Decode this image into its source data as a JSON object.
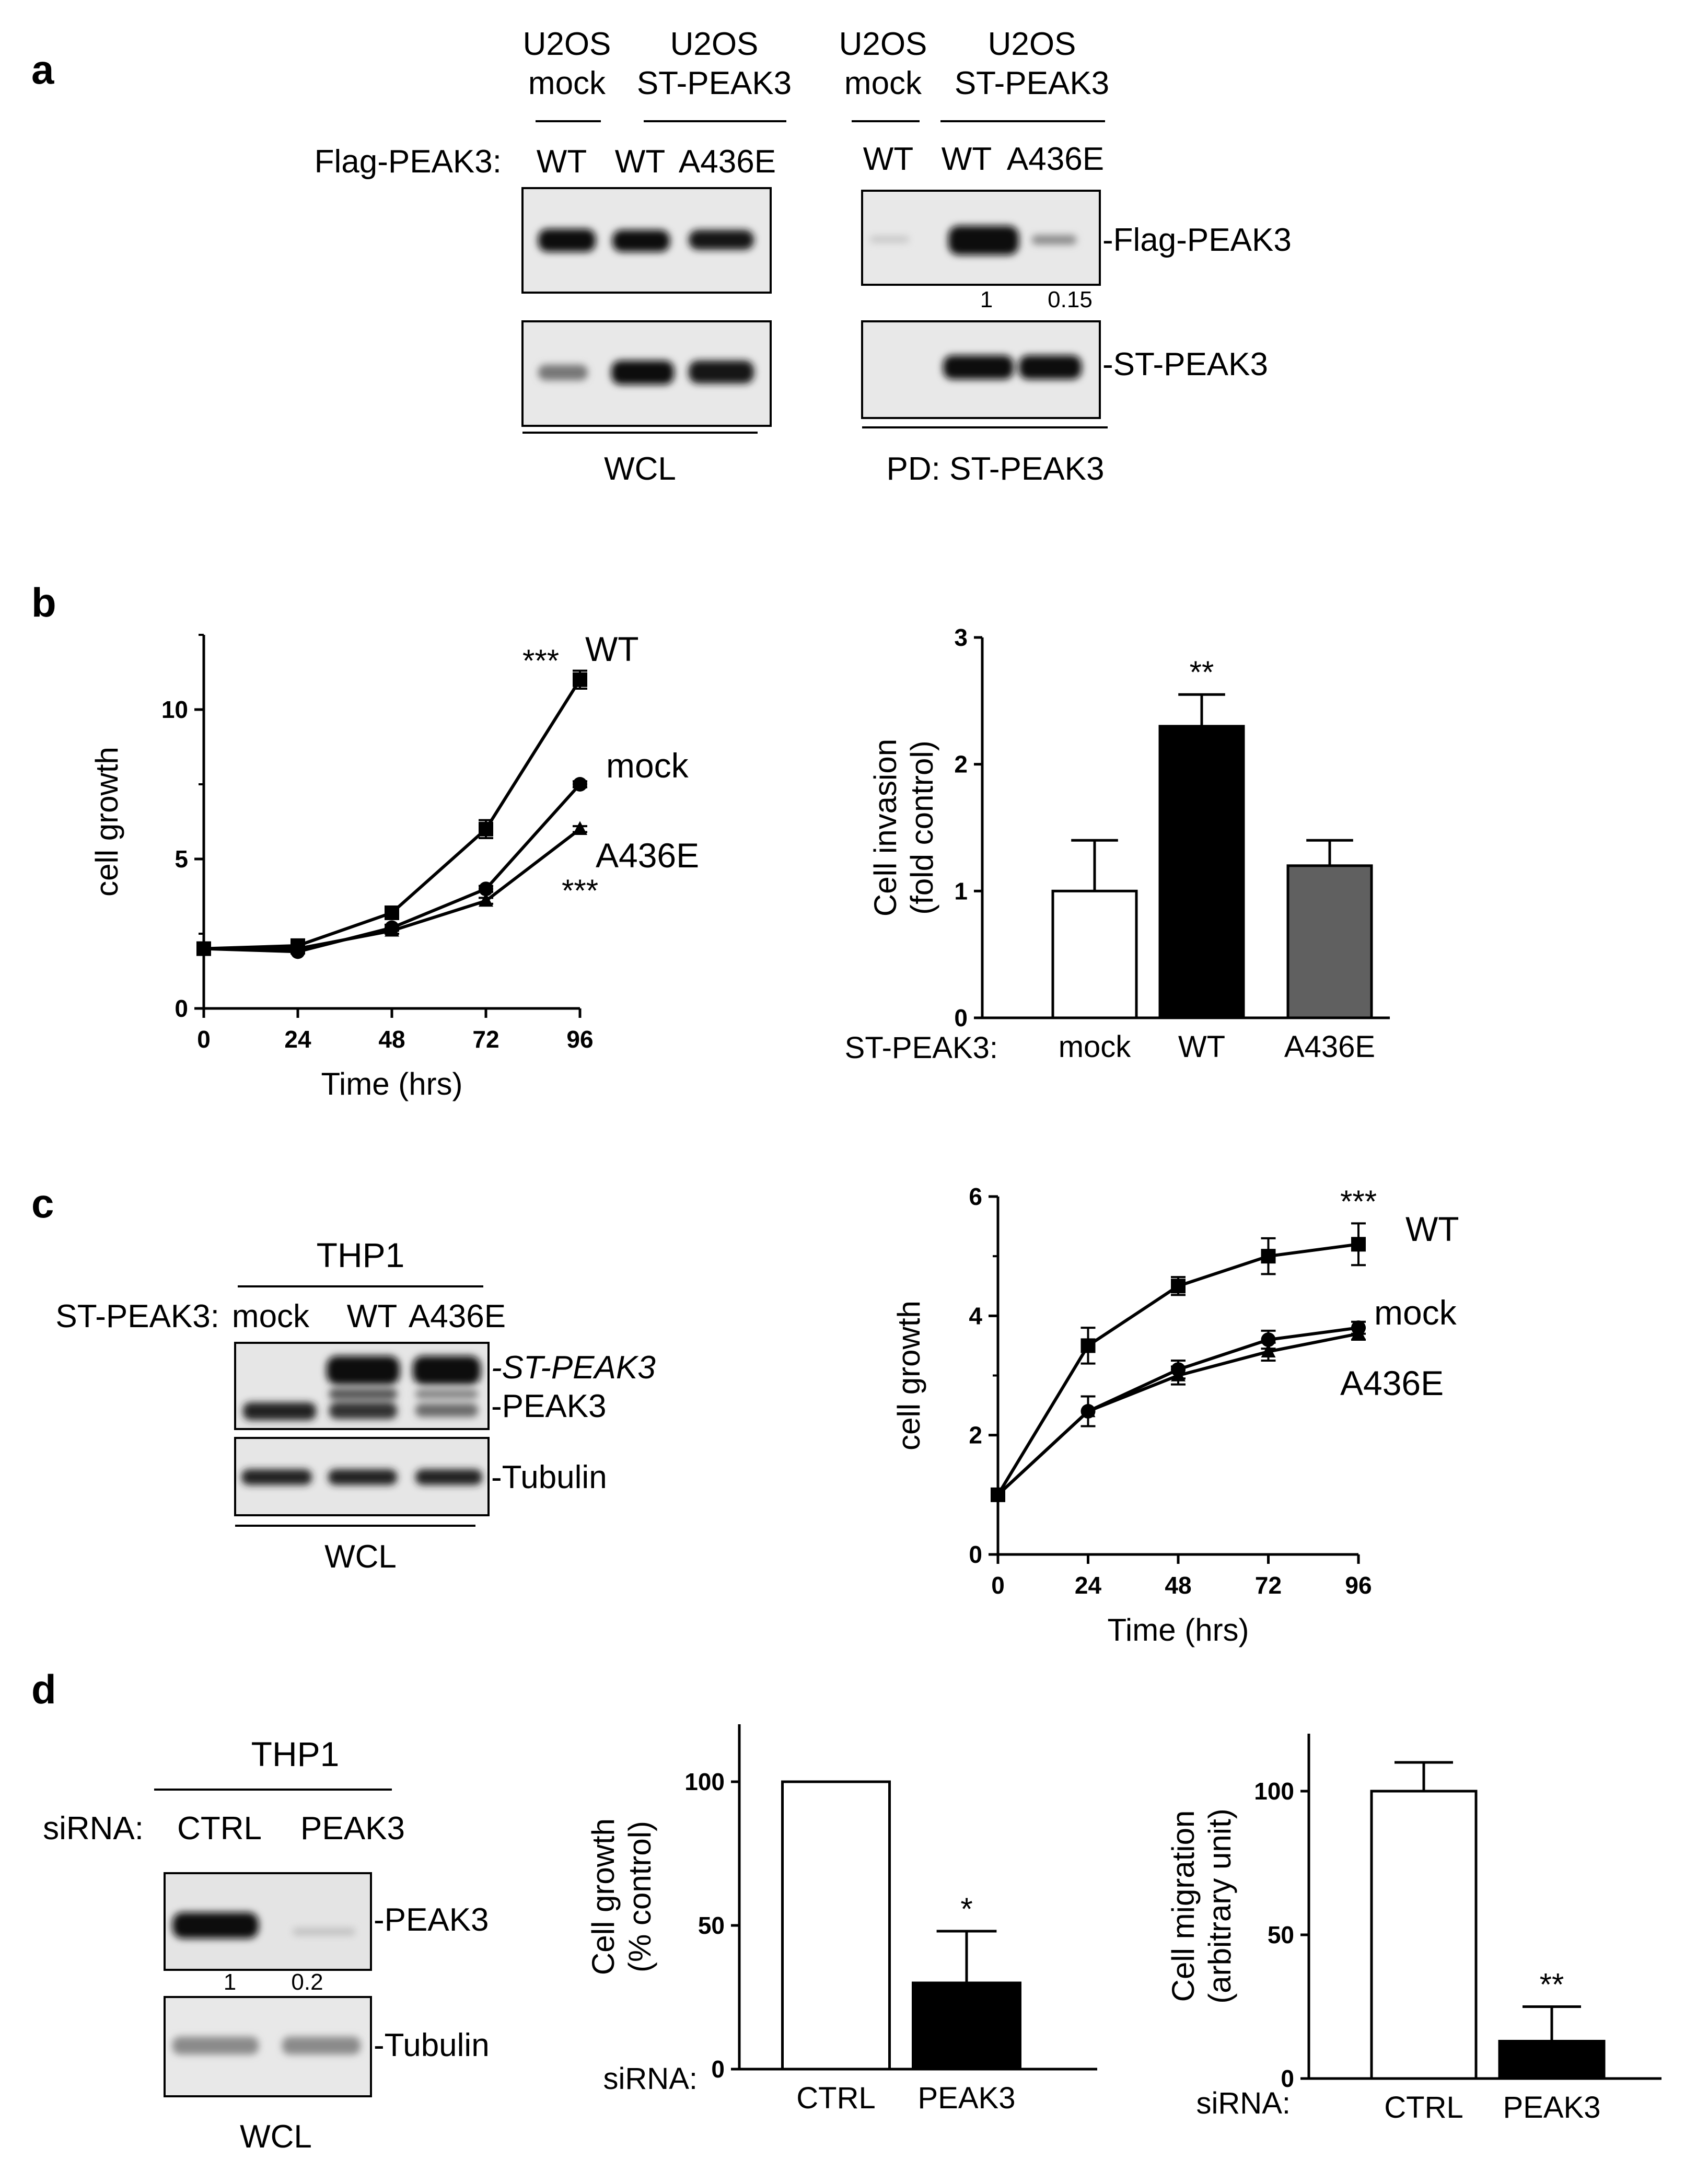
{
  "panels": {
    "a": "a",
    "b": "b",
    "c": "c",
    "d": "d"
  },
  "colors": {
    "ink": "#000000",
    "blot_bg": "#e6e6e6",
    "blot_band": "#1a1a1a",
    "bar_white": "#ffffff",
    "bar_black": "#000000",
    "bar_grey": "#606060"
  },
  "panel_a": {
    "left": {
      "groups": [
        "U2OS\nmock",
        "U2OS\nST-PEAK3"
      ],
      "row_label": "Flag-PEAK3:",
      "lanes": [
        "WT",
        "WT",
        "A436E"
      ],
      "footer": "WCL",
      "band_levels_flag": [
        1.0,
        1.0,
        0.95
      ],
      "band_levels_st": [
        0.45,
        1.0,
        1.0
      ]
    },
    "right": {
      "groups": [
        "U2OS\nmock",
        "U2OS\nST-PEAK3"
      ],
      "lanes": [
        "WT",
        "WT",
        "A436E"
      ],
      "band_labels": [
        "-Flag-PEAK3",
        "-ST-PEAK3"
      ],
      "quant": [
        "1",
        "0.15"
      ],
      "footer": "PD: ST-PEAK3",
      "band_levels_flag": [
        0.12,
        1.0,
        0.3
      ],
      "band_levels_st": [
        0.0,
        1.0,
        1.0
      ]
    }
  },
  "panel_c_blot": {
    "title": "THP1",
    "row_label": "ST-PEAK3:",
    "lanes": [
      "mock",
      "WT",
      "A436E"
    ],
    "band_labels": [
      "-ST-PEAK3",
      "-PEAK3",
      "-Tubulin"
    ],
    "footer": "WCL"
  },
  "panel_d_blot": {
    "title": "THP1",
    "row_label": "siRNA:",
    "lanes": [
      "CTRL",
      "PEAK3"
    ],
    "band_labels": [
      "-PEAK3",
      "-Tubulin"
    ],
    "quant": [
      "1",
      "0.2"
    ],
    "footer": "WCL"
  },
  "chart_data": [
    {
      "id": "b_growth",
      "type": "line",
      "xlabel": "Time (hrs)",
      "ylabel": "cell growth",
      "x": [
        0,
        24,
        48,
        72,
        96
      ],
      "xticks": [
        "0",
        "24",
        "48",
        "72",
        "96"
      ],
      "yticks": [
        "0",
        "5",
        "10"
      ],
      "xlim": [
        0,
        96
      ],
      "ylim": [
        0,
        12.5
      ],
      "series": [
        {
          "name": "WT",
          "marker": "square",
          "values": [
            2,
            2.1,
            3.2,
            6.0,
            11.0
          ],
          "err": [
            0.1,
            0.1,
            0.15,
            0.3,
            0.3
          ],
          "stars": "***"
        },
        {
          "name": "mock",
          "marker": "circle",
          "values": [
            2,
            1.9,
            2.7,
            4.0,
            7.5
          ],
          "err": [
            0.05,
            0.05,
            0.1,
            0.1,
            0.1
          ],
          "stars": ""
        },
        {
          "name": "A436E",
          "marker": "triangle",
          "values": [
            2,
            2.0,
            2.6,
            3.6,
            6.0
          ],
          "err": [
            0.05,
            0.05,
            0.1,
            0.1,
            0.1
          ],
          "stars": "***"
        }
      ]
    },
    {
      "id": "b_invasion",
      "type": "bar",
      "ylabel": "Cell invasion\n(fold control)",
      "category_label": "ST-PEAK3:",
      "categories": [
        "mock",
        "WT",
        "A436E"
      ],
      "values": [
        1.0,
        2.3,
        1.2
      ],
      "err": [
        0.4,
        0.25,
        0.2
      ],
      "stars": [
        "",
        "**",
        ""
      ],
      "fills": [
        "#ffffff",
        "#000000",
        "#606060"
      ],
      "ylim": [
        0,
        3
      ],
      "yticks": [
        "0",
        "1",
        "2",
        "3"
      ]
    },
    {
      "id": "c_growth",
      "type": "line",
      "xlabel": "Time (hrs)",
      "ylabel": "cell growth",
      "x": [
        0,
        24,
        48,
        72,
        96
      ],
      "xticks": [
        "0",
        "24",
        "48",
        "72",
        "96"
      ],
      "yticks": [
        "0",
        "2",
        "4",
        "6"
      ],
      "xlim": [
        0,
        96
      ],
      "ylim": [
        0,
        6
      ],
      "series": [
        {
          "name": "WT",
          "marker": "square",
          "values": [
            1.0,
            3.5,
            4.5,
            5.0,
            5.2
          ],
          "err": [
            0.05,
            0.3,
            0.15,
            0.3,
            0.35
          ],
          "stars": "***"
        },
        {
          "name": "mock",
          "marker": "circle",
          "values": [
            1.0,
            2.4,
            3.1,
            3.6,
            3.8
          ],
          "err": [
            0.05,
            0.25,
            0.15,
            0.15,
            0.1
          ],
          "stars": ""
        },
        {
          "name": "A436E",
          "marker": "triangle",
          "values": [
            1.0,
            2.4,
            3.0,
            3.4,
            3.7
          ],
          "err": [
            0.05,
            0.25,
            0.15,
            0.15,
            0.1
          ],
          "stars": ""
        }
      ]
    },
    {
      "id": "d_growth",
      "type": "bar",
      "ylabel": "Cell growth\n(% control)",
      "category_label": "siRNA:",
      "categories": [
        "CTRL",
        "PEAK3"
      ],
      "values": [
        100,
        30
      ],
      "err": [
        0,
        18
      ],
      "stars": [
        "",
        "*"
      ],
      "fills": [
        "#ffffff",
        "#000000"
      ],
      "ylim": [
        0,
        120
      ],
      "yticks": [
        "0",
        "50",
        "100"
      ]
    },
    {
      "id": "d_migration",
      "type": "bar",
      "ylabel": "Cell migration\n(arbitrary unit)",
      "category_label": "siRNA:",
      "categories": [
        "CTRL",
        "PEAK3"
      ],
      "values": [
        100,
        13
      ],
      "err": [
        10,
        12
      ],
      "stars": [
        "",
        "**"
      ],
      "fills": [
        "#ffffff",
        "#000000"
      ],
      "ylim": [
        0,
        120
      ],
      "yticks": [
        "0",
        "50",
        "100"
      ]
    }
  ]
}
